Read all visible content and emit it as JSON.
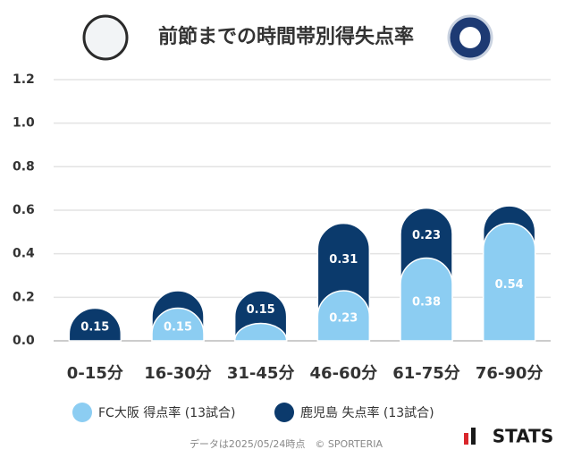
{
  "chart_data": {
    "type": "stacked_bar",
    "title": "前節までの時間帯別得失点率",
    "categories": [
      "0-15分",
      "16-30分",
      "31-45分",
      "46-60分",
      "61-75分",
      "76-90分"
    ],
    "series": [
      {
        "name": "FC大阪 得点率 (13試合)",
        "color": "#8ccdf2",
        "values": [
          0,
          0.15,
          0.08,
          0.23,
          0.38,
          0.54
        ],
        "value_labels": [
          null,
          "0.15",
          null,
          "0.23",
          "0.38",
          "0.54"
        ]
      },
      {
        "name": "鹿児島 失点率 (13試合)",
        "color": "#0b3a6c",
        "values": [
          0.15,
          0.08,
          0.15,
          0.31,
          0.23,
          0.08
        ],
        "value_labels": [
          "0.15",
          null,
          "0.15",
          "0.31",
          "0.23",
          null
        ]
      }
    ],
    "ylim": [
      0,
      1.2
    ],
    "yticks": [
      {
        "value": 0,
        "label": "0.0"
      },
      0.2,
      0.4,
      0.6,
      0.8,
      {
        "value": 1,
        "label": "1.0"
      },
      1.2
    ],
    "grid": true,
    "legend": "bottom",
    "source": "データは2025/05/24時点　© SPORTERIA"
  },
  "brand": "STATS"
}
